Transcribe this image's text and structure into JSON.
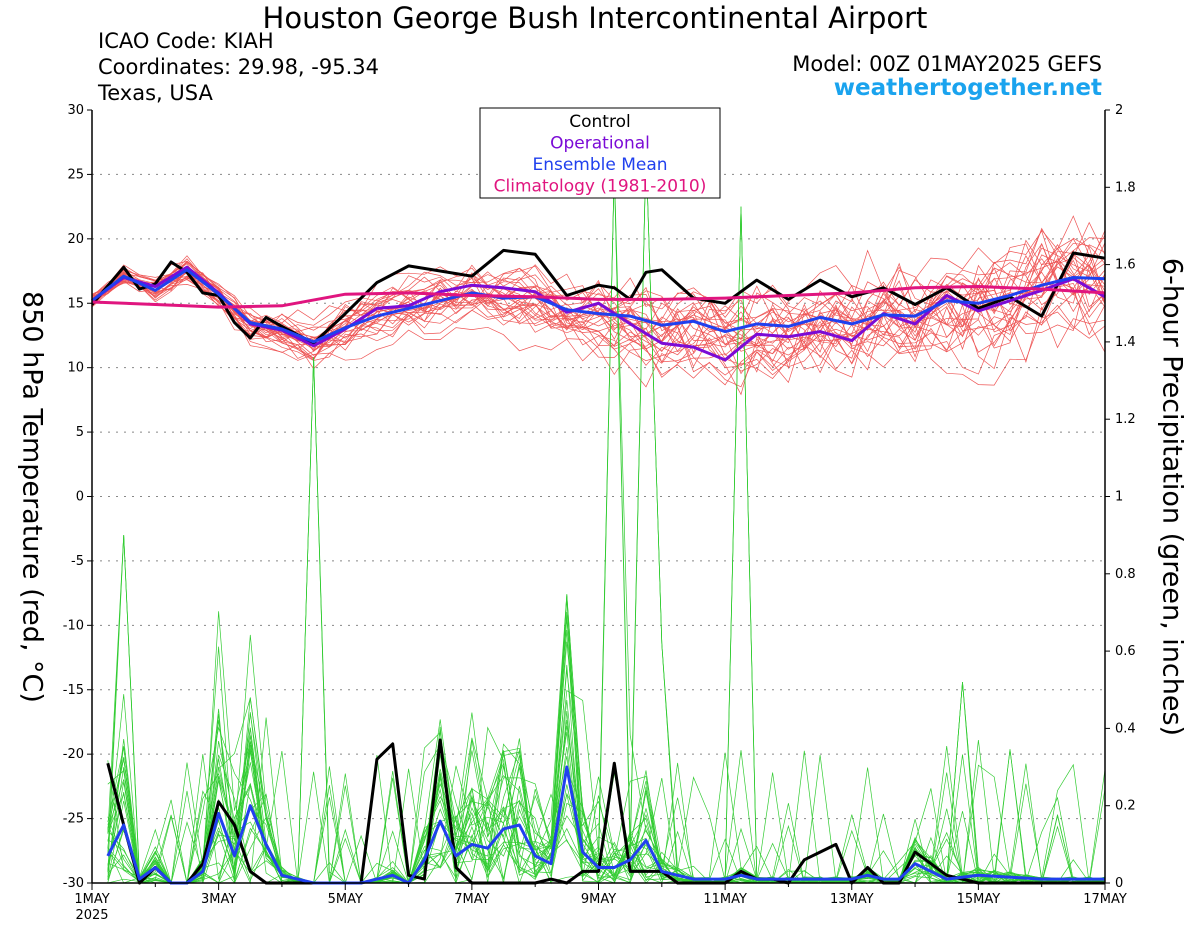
{
  "header": {
    "title": "Houston George Bush Intercontinental Airport",
    "icao": "ICAO Code: KIAH",
    "coordinates": "Coordinates: 29.98, -95.34",
    "region": "Texas, USA",
    "model": "Model: 00Z 01MAY2025 GEFS",
    "site": "weathertogether.net"
  },
  "colors": {
    "control": "#000000",
    "operational": "#7b0bd6",
    "ensemble_mean": "#2040ee",
    "climatology": "#e0157f",
    "members_temp": "#ee5555",
    "members_precip": "#33cc33",
    "site": "#1aa3ee"
  },
  "chart_data": {
    "type": "line",
    "title": "Houston George Bush Intercontinental Airport",
    "ylabel_left": "850 hPa Temperature (red, °C)",
    "ylabel_right": "6-hour Precipitation (green, inches)",
    "ylim_left": [
      -30,
      30
    ],
    "ylim_right": [
      0,
      2
    ],
    "yticks_left": [
      "30",
      "25",
      "20",
      "15",
      "10",
      "5",
      "0",
      "-5",
      "-10",
      "-15",
      "-20",
      "-25",
      "-30"
    ],
    "yticks_right": [
      "2",
      "1.8",
      "1.6",
      "1.4",
      "1.2",
      "1",
      "0.8",
      "0.6",
      "0.4",
      "0.2",
      "0"
    ],
    "xticks": [
      "1MAY",
      "3MAY",
      "5MAY",
      "7MAY",
      "9MAY",
      "11MAY",
      "13MAY",
      "15MAY",
      "17MAY"
    ],
    "x_year_label": "2025",
    "x_range_days": [
      0,
      16
    ],
    "grid": "dotted horizontal",
    "legend": {
      "position": "top-center",
      "entries": [
        "Control",
        "Operational",
        "Ensemble Mean",
        "Climatology (1981-2010)"
      ]
    },
    "series": [
      {
        "name": "Control",
        "axis": "left",
        "x": [
          0,
          0.5,
          0.75,
          1,
          1.25,
          1.5,
          1.75,
          2,
          2.25,
          2.5,
          2.75,
          3,
          3.5,
          4,
          4.5,
          5,
          5.5,
          6,
          6.5,
          7,
          7.5,
          8,
          8.25,
          8.5,
          8.75,
          9,
          9.5,
          10,
          10.5,
          11,
          11.5,
          12,
          12.5,
          13,
          13.5,
          14,
          14.5,
          15,
          15.5,
          16
        ],
        "values": [
          14.9,
          17.8,
          16.1,
          16.5,
          18.2,
          17.4,
          15.8,
          15.6,
          13.5,
          12.3,
          13.9,
          13.2,
          11.9,
          14.2,
          16.6,
          17.9,
          17.5,
          17.1,
          19.1,
          18.8,
          15.6,
          16.4,
          16.2,
          15.3,
          17.4,
          17.6,
          15.4,
          15.0,
          16.8,
          15.3,
          16.8,
          15.5,
          16.2,
          14.9,
          16.2,
          14.6,
          15.5,
          14.0,
          18.9,
          18.5
        ]
      },
      {
        "name": "Operational",
        "axis": "left",
        "x": [
          0,
          0.5,
          1,
          1.5,
          2,
          2.5,
          3,
          3.5,
          4,
          4.5,
          5,
          5.5,
          6,
          6.5,
          7,
          7.5,
          8,
          8.5,
          9,
          9.5,
          10,
          10.5,
          11,
          11.5,
          12,
          12.5,
          13,
          13.5,
          14,
          14.5,
          15,
          15.5,
          16
        ],
        "values": [
          15.2,
          17.0,
          16.3,
          17.8,
          15.8,
          13.4,
          12.9,
          11.7,
          13.0,
          14.6,
          14.8,
          15.9,
          16.4,
          16.2,
          15.9,
          14.3,
          15.0,
          13.4,
          11.9,
          11.6,
          10.6,
          12.6,
          12.4,
          12.8,
          12.1,
          14.2,
          13.4,
          15.6,
          14.4,
          15.2,
          16.0,
          16.9,
          15.5
        ]
      },
      {
        "name": "Ensemble Mean",
        "axis": "left",
        "x": [
          0,
          0.5,
          1,
          1.5,
          2,
          2.5,
          3,
          3.5,
          4,
          4.5,
          5,
          5.5,
          6,
          6.5,
          7,
          7.5,
          8,
          8.5,
          9,
          9.5,
          10,
          10.5,
          11,
          11.5,
          12,
          12.5,
          13,
          13.5,
          14,
          14.5,
          15,
          15.5,
          16
        ],
        "values": [
          15.2,
          17.1,
          16.0,
          17.6,
          15.7,
          13.5,
          13.0,
          12.0,
          13.1,
          14.0,
          14.6,
          15.2,
          15.8,
          15.4,
          15.5,
          14.5,
          14.2,
          14.0,
          13.3,
          13.6,
          12.8,
          13.4,
          13.2,
          13.9,
          13.4,
          14.1,
          14.0,
          15.2,
          15.0,
          15.6,
          16.4,
          17.0,
          16.9
        ]
      },
      {
        "name": "Climatology (1981-2010)",
        "axis": "left",
        "x": [
          0,
          1,
          2,
          3,
          4,
          5,
          6,
          7,
          8,
          9,
          10,
          11,
          12,
          13,
          14,
          15,
          16
        ],
        "values": [
          15.1,
          14.9,
          14.7,
          14.8,
          15.7,
          15.8,
          15.6,
          15.5,
          15.3,
          15.3,
          15.4,
          15.6,
          15.8,
          16.2,
          16.3,
          16.1,
          15.8
        ]
      },
      {
        "name": "Control",
        "axis": "right",
        "x": [
          0.25,
          0.5,
          0.75,
          1,
          1.25,
          1.5,
          1.75,
          2,
          2.25,
          2.5,
          2.75,
          3,
          3.5,
          4,
          4.25,
          4.5,
          4.75,
          5,
          5.25,
          5.5,
          5.75,
          6,
          6.25,
          6.5,
          6.75,
          7,
          7.25,
          7.5,
          7.75,
          8,
          8.25,
          8.5,
          8.75,
          9,
          9.25,
          9.5,
          9.75,
          10,
          10.25,
          10.5,
          10.75,
          11,
          11.25,
          11.5,
          11.75,
          12,
          12.25,
          12.5,
          12.75,
          13,
          13.5,
          14,
          15,
          16
        ],
        "values": [
          0.31,
          0.15,
          0.0,
          0.04,
          0.0,
          0.0,
          0.05,
          0.21,
          0.15,
          0.03,
          0.0,
          0.0,
          0.0,
          0.0,
          0.0,
          0.32,
          0.36,
          0.02,
          0.01,
          0.37,
          0.04,
          0.0,
          0.0,
          0.0,
          0.0,
          0.0,
          0.01,
          0.0,
          0.03,
          0.03,
          0.31,
          0.03,
          0.03,
          0.03,
          0.0,
          0.0,
          0.0,
          0.0,
          0.03,
          0.01,
          0.01,
          0.0,
          0.06,
          0.08,
          0.1,
          0.0,
          0.04,
          0.0,
          0.0,
          0.08,
          0.02,
          0.0,
          0.0,
          0.0
        ]
      },
      {
        "name": "Ensemble Mean",
        "axis": "right",
        "x": [
          0.25,
          0.5,
          0.75,
          1,
          1.25,
          1.5,
          1.75,
          2,
          2.25,
          2.5,
          2.75,
          3,
          3.5,
          4,
          4.25,
          4.5,
          4.75,
          5,
          5.25,
          5.5,
          5.75,
          6,
          6.25,
          6.5,
          6.75,
          7,
          7.25,
          7.5,
          7.75,
          8,
          8.25,
          8.5,
          8.75,
          9,
          9.25,
          9.5,
          9.75,
          10,
          10.25,
          10.5,
          10.75,
          11,
          11.25,
          11.5,
          11.75,
          12,
          12.25,
          12.5,
          12.75,
          13,
          13.5,
          14,
          15,
          16
        ],
        "values": [
          0.07,
          0.15,
          0.01,
          0.04,
          0.0,
          0.0,
          0.03,
          0.18,
          0.07,
          0.2,
          0.1,
          0.02,
          0.0,
          0.0,
          0.0,
          0.01,
          0.02,
          0.0,
          0.06,
          0.16,
          0.07,
          0.1,
          0.09,
          0.14,
          0.15,
          0.07,
          0.05,
          0.3,
          0.08,
          0.04,
          0.04,
          0.06,
          0.11,
          0.03,
          0.02,
          0.01,
          0.01,
          0.01,
          0.02,
          0.01,
          0.01,
          0.01,
          0.01,
          0.01,
          0.01,
          0.01,
          0.02,
          0.01,
          0.01,
          0.05,
          0.01,
          0.02,
          0.01,
          0.01
        ]
      }
    ]
  }
}
